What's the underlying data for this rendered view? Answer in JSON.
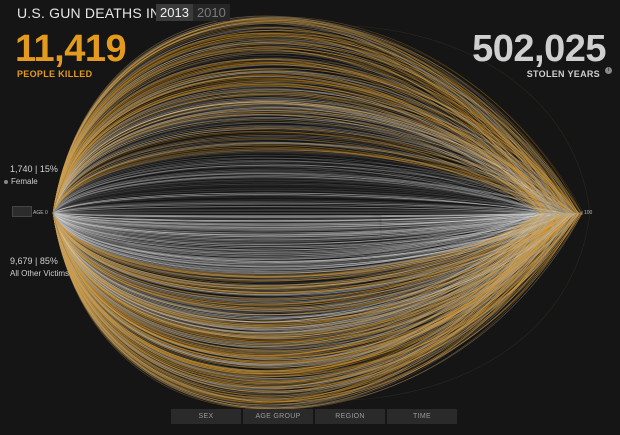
{
  "header": {
    "title": "U.S. GUN DEATHS IN",
    "years": [
      {
        "label": "2013",
        "active": true
      },
      {
        "label": "2010",
        "active": false
      }
    ]
  },
  "summary": {
    "people_killed": "11,419",
    "people_killed_label": "PEOPLE KILLED",
    "stolen_years": "502,025",
    "stolen_years_label": "STOLEN YEARS",
    "info_icon": "info-icon"
  },
  "groups": [
    {
      "stat": "1,740 | 15%",
      "name": "Female",
      "count": 1740,
      "share": 0.15
    },
    {
      "stat": "9,679 | 85%",
      "name": "All Other Victims",
      "count": 9679,
      "share": 0.85
    }
  ],
  "axis": {
    "start_label": "AGE 0",
    "end_label": "100"
  },
  "tabs": [
    {
      "label": "SEX"
    },
    {
      "label": "AGE GROUP"
    },
    {
      "label": "REGION"
    },
    {
      "label": "TIME"
    }
  ],
  "chart_data": {
    "type": "line",
    "description_series": [
      {
        "name": "Female",
        "count": 1740,
        "share_percent": 15
      },
      {
        "name": "All Other Victims",
        "count": 9679,
        "share_percent": 85
      }
    ],
    "x_range": [
      0,
      100
    ],
    "colors": {
      "killed": "#e49b1d",
      "stolen": "#d8d8d8",
      "background": "#151515"
    }
  }
}
